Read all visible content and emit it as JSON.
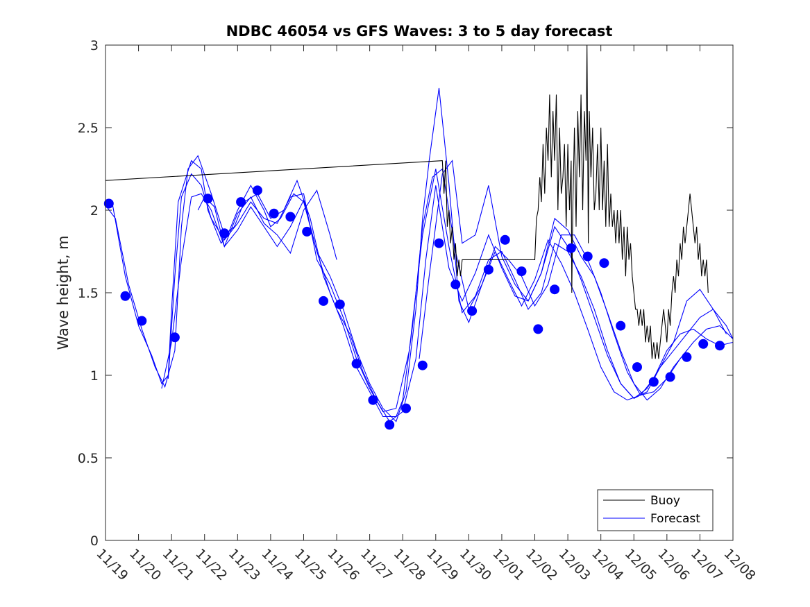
{
  "chart_data": {
    "type": "line",
    "title": "NDBC 46054 vs GFS Waves: 3 to 5 day forecast",
    "xlabel": "",
    "ylabel": "Wave height, m",
    "xlim": [
      0,
      19
    ],
    "ylim": [
      0,
      3
    ],
    "y_ticks": [
      0,
      0.5,
      1,
      1.5,
      2,
      2.5,
      3
    ],
    "y_tick_labels": [
      "0",
      "0.5",
      "1",
      "1.5",
      "2",
      "2.5",
      "3"
    ],
    "x_ticks": [
      0,
      1,
      2,
      3,
      4,
      5,
      6,
      7,
      8,
      9,
      10,
      11,
      12,
      13,
      14,
      15,
      16,
      17,
      18,
      19
    ],
    "x_tick_labels": [
      "11/19",
      "11/20",
      "11/21",
      "11/22",
      "11/23",
      "11/24",
      "11/25",
      "11/26",
      "11/27",
      "11/28",
      "11/29",
      "11/30",
      "12/01",
      "12/02",
      "12/03",
      "12/04",
      "12/05",
      "12/06",
      "12/07",
      "12/08"
    ],
    "legend": {
      "location": "bottom-right",
      "entries": [
        "Buoy",
        "Forecast"
      ]
    },
    "colors": {
      "buoy": "#000000",
      "forecast": "#0000ff",
      "axis": "#262626"
    },
    "series": [
      {
        "name": "Buoy",
        "style": "line",
        "x": [
          0,
          10.2,
          10.25,
          10.3,
          10.35,
          10.4,
          10.45,
          10.5,
          10.55,
          10.6,
          10.65,
          10.7,
          10.75,
          10.8,
          10.85,
          10.9,
          10.95,
          11.0,
          11.5,
          12.0,
          12.5,
          13.0,
          13.05,
          13.1,
          13.15,
          13.2,
          13.25,
          13.3,
          13.35,
          13.4,
          13.45,
          13.5,
          13.55,
          13.6,
          13.65,
          13.7,
          13.75,
          13.8,
          13.85,
          13.9,
          13.95,
          14.0,
          14.05,
          14.1,
          14.12,
          14.15,
          14.2,
          14.25,
          14.3,
          14.35,
          14.4,
          14.45,
          14.5,
          14.55,
          14.58,
          14.6,
          14.62,
          14.65,
          14.7,
          14.75,
          14.8,
          14.85,
          14.9,
          14.95,
          15.0,
          15.05,
          15.1,
          15.15,
          15.2,
          15.25,
          15.3,
          15.35,
          15.4,
          15.45,
          15.5,
          15.55,
          15.6,
          15.65,
          15.7,
          15.75,
          15.8,
          15.85,
          15.9,
          15.95,
          16.0,
          16.05,
          16.1,
          16.15,
          16.2,
          16.25,
          16.3,
          16.35,
          16.4,
          16.45,
          16.5,
          16.55,
          16.6,
          16.65,
          16.7,
          16.75,
          16.8,
          16.85,
          16.9,
          16.95,
          17.0,
          17.05,
          17.1,
          17.15,
          17.2,
          17.25,
          17.3,
          17.35,
          17.4,
          17.45,
          17.5,
          17.55,
          17.6,
          17.65,
          17.7,
          17.75,
          17.8,
          17.85,
          17.9,
          17.95,
          18.0,
          18.05,
          18.1,
          18.15,
          18.2,
          18.25
        ],
        "y": [
          2.18,
          2.3,
          2.1,
          2.3,
          1.9,
          2.0,
          1.8,
          1.9,
          1.7,
          1.8,
          1.6,
          1.7,
          1.6,
          1.7,
          1.7,
          1.7,
          1.7,
          1.7,
          1.7,
          1.7,
          1.7,
          1.7,
          1.95,
          2.0,
          2.2,
          2.05,
          2.4,
          2.1,
          2.5,
          2.3,
          2.7,
          2.2,
          2.6,
          2.3,
          2.7,
          2.0,
          2.5,
          2.1,
          2.2,
          2.4,
          1.9,
          2.4,
          2.0,
          2.3,
          1.5,
          2.0,
          2.5,
          1.9,
          2.6,
          2.2,
          2.7,
          2.0,
          2.6,
          2.3,
          3.0,
          2.4,
          1.8,
          2.6,
          2.2,
          2.5,
          2.0,
          2.1,
          2.4,
          2.0,
          2.5,
          2.0,
          2.3,
          1.9,
          2.4,
          1.9,
          2.1,
          1.9,
          2.0,
          1.8,
          2.0,
          1.8,
          2.0,
          1.7,
          1.9,
          1.6,
          1.9,
          1.7,
          1.8,
          1.6,
          1.5,
          1.4,
          1.4,
          1.3,
          1.4,
          1.3,
          1.4,
          1.2,
          1.3,
          1.2,
          1.3,
          1.1,
          1.2,
          1.1,
          1.2,
          1.1,
          1.2,
          1.3,
          1.4,
          1.3,
          1.2,
          1.4,
          1.3,
          1.5,
          1.6,
          1.5,
          1.7,
          1.6,
          1.8,
          1.7,
          1.9,
          1.8,
          1.9,
          2.0,
          2.1,
          2.0,
          1.9,
          1.8,
          1.9,
          1.7,
          1.8,
          1.6,
          1.7,
          1.6,
          1.7,
          1.5
        ]
      },
      {
        "name": "Forecast",
        "style": "markers",
        "x": [
          0.1,
          0.6,
          1.1,
          2.1,
          3.1,
          3.6,
          4.1,
          4.6,
          5.1,
          5.6,
          6.1,
          6.6,
          7.1,
          7.6,
          8.1,
          8.6,
          9.1,
          9.6,
          10.1,
          10.6,
          11.1,
          11.6,
          12.1,
          12.6,
          13.1,
          13.6,
          14.1,
          14.6,
          15.1,
          15.6,
          16.1,
          16.6,
          17.1,
          17.6,
          18.1,
          18.6
        ],
        "y": [
          2.04,
          1.48,
          1.33,
          1.23,
          2.07,
          1.86,
          2.05,
          2.12,
          1.98,
          1.96,
          1.87,
          1.45,
          1.43,
          1.07,
          0.85,
          0.7,
          0.8,
          1.06,
          1.8,
          1.55,
          1.39,
          1.64,
          1.82,
          1.63,
          1.28,
          1.52,
          1.77,
          1.72,
          1.68,
          1.3,
          1.05,
          0.96,
          0.99,
          1.11,
          1.19,
          1.18
        ]
      },
      {
        "name": "Forecast",
        "style": "line",
        "x": [
          0.0,
          0.2,
          0.6,
          1.0,
          1.4,
          1.7,
          1.9,
          2.0,
          2.2,
          2.6,
          2.9,
          3.1,
          3.5,
          3.7,
          4.0,
          4.4,
          4.8,
          5.0,
          5.3,
          5.7,
          6.0,
          6.4,
          6.8,
          7.2,
          7.6,
          8.0,
          8.4,
          8.8,
          9.0,
          9.3,
          9.6,
          9.9,
          10.2,
          10.6,
          11.0,
          11.4,
          11.8,
          12.2,
          12.6,
          13.0,
          13.4,
          13.8,
          14.2,
          14.6,
          15.0,
          15.4,
          15.8,
          16.2,
          16.6,
          17.0,
          17.4,
          17.8,
          18.2,
          18.6,
          19.0
        ],
        "y": [
          2.05,
          2.05,
          1.6,
          1.3,
          1.12,
          0.95,
          1.0,
          1.4,
          2.05,
          2.3,
          2.25,
          2.0,
          1.8,
          1.85,
          2.0,
          2.15,
          2.0,
          1.9,
          1.95,
          2.1,
          2.05,
          1.75,
          1.5,
          1.3,
          1.05,
          0.9,
          0.75,
          0.75,
          0.85,
          1.3,
          1.9,
          2.2,
          2.25,
          1.75,
          1.4,
          1.55,
          1.78,
          1.7,
          1.6,
          1.42,
          1.55,
          1.85,
          1.85,
          1.7,
          1.5,
          1.25,
          1.02,
          0.88,
          0.9,
          0.98,
          1.1,
          1.2,
          1.28,
          1.3,
          1.22
        ]
      },
      {
        "name": "Forecast",
        "style": "line",
        "x": [
          0.0,
          0.3,
          0.7,
          1.1,
          1.5,
          1.8,
          2.1,
          2.3,
          2.5,
          2.8,
          3.2,
          3.6,
          3.9,
          4.2,
          4.6,
          5.0,
          5.4,
          5.8,
          6.2,
          6.6,
          7.0,
          7.4,
          7.8,
          8.2,
          8.6,
          9.0,
          9.4,
          9.7,
          10.0,
          10.4,
          10.8,
          11.2,
          11.6,
          12.0,
          12.4,
          12.8,
          13.2,
          13.6,
          14.0,
          14.4,
          14.8,
          15.2,
          15.6,
          16.0,
          16.4,
          16.8,
          17.2,
          17.6,
          18.0,
          18.4,
          18.8,
          19.0
        ],
        "y": [
          2.03,
          1.95,
          1.55,
          1.28,
          1.05,
          0.93,
          1.15,
          1.9,
          2.25,
          2.33,
          2.1,
          1.85,
          1.9,
          2.05,
          2.1,
          1.95,
          2.0,
          2.18,
          1.95,
          1.6,
          1.4,
          1.25,
          1.02,
          0.85,
          0.72,
          0.78,
          1.1,
          1.7,
          2.15,
          1.65,
          1.45,
          1.62,
          1.85,
          1.65,
          1.48,
          1.45,
          1.62,
          1.9,
          1.78,
          1.58,
          1.35,
          1.12,
          0.95,
          0.86,
          0.92,
          1.05,
          1.15,
          1.25,
          1.35,
          1.4,
          1.3,
          1.22
        ]
      },
      {
        "name": "Forecast",
        "style": "line",
        "x": [
          1.9,
          2.1,
          2.3,
          2.6,
          2.9,
          3.2,
          3.6,
          4.0,
          4.4,
          4.8,
          5.2,
          5.6,
          6.0,
          6.4,
          6.8,
          7.2,
          7.6,
          8.0,
          8.4,
          8.8,
          9.2,
          9.6,
          10.0,
          10.4,
          10.8,
          11.2,
          11.6,
          12.0,
          12.4,
          12.8,
          13.2,
          13.6,
          14.0,
          14.4,
          14.8,
          15.2,
          15.6,
          16.0,
          16.4,
          16.8,
          17.2,
          17.6,
          18.0,
          18.4,
          18.8
        ],
        "y": [
          0.98,
          1.6,
          2.08,
          2.22,
          2.15,
          1.95,
          1.82,
          1.92,
          2.05,
          1.95,
          1.92,
          2.08,
          2.1,
          1.7,
          1.55,
          1.35,
          1.1,
          0.92,
          0.78,
          0.8,
          1.15,
          1.85,
          2.25,
          1.78,
          1.38,
          1.48,
          1.7,
          1.75,
          1.58,
          1.4,
          1.5,
          1.8,
          1.75,
          1.6,
          1.4,
          1.15,
          0.95,
          0.86,
          0.9,
          1.05,
          1.2,
          1.45,
          1.52,
          1.4,
          1.25
        ]
      },
      {
        "name": "Forecast",
        "style": "line",
        "x": [
          1.7,
          2.0,
          2.3,
          2.6,
          2.9,
          3.2,
          3.6,
          4.0,
          4.4,
          4.8,
          5.2,
          5.6,
          6.0,
          6.4,
          6.8,
          7.2,
          7.6,
          8.0,
          8.4,
          8.8,
          9.1,
          9.4,
          9.6,
          9.8,
          10.1,
          10.4,
          10.7,
          11.0,
          11.4,
          11.8,
          12.2,
          12.6,
          13.0,
          13.4,
          13.8,
          14.2,
          14.6,
          15.0,
          15.4,
          15.8,
          16.2,
          16.6,
          17.0,
          17.4,
          17.8,
          18.2,
          18.6,
          19.0
        ],
        "y": [
          0.92,
          1.2,
          1.7,
          2.08,
          2.1,
          2.0,
          1.78,
          1.88,
          2.02,
          1.9,
          1.78,
          1.9,
          2.06,
          1.75,
          1.6,
          1.4,
          1.15,
          0.95,
          0.8,
          0.72,
          0.9,
          1.4,
          1.95,
          2.3,
          2.74,
          2.16,
          1.45,
          1.32,
          1.55,
          1.75,
          1.58,
          1.42,
          1.58,
          1.82,
          1.68,
          1.5,
          1.28,
          1.05,
          0.9,
          0.85,
          0.88,
          0.98,
          1.15,
          1.25,
          1.28,
          1.22,
          1.18,
          1.2
        ]
      },
      {
        "name": "Forecast",
        "style": "line",
        "x": [
          2.8,
          3.0,
          3.3,
          3.6,
          4.0,
          4.4,
          4.8,
          5.2,
          5.6,
          6.0,
          6.4,
          6.8,
          7.0
        ],
        "y": [
          2.0,
          2.08,
          2.02,
          1.78,
          1.98,
          2.08,
          1.92,
          1.85,
          1.74,
          2.0,
          2.12,
          1.85,
          1.7
        ]
      },
      {
        "name": "Forecast",
        "style": "line",
        "x": [
          9.5,
          9.8,
          10.2,
          10.5,
          10.8,
          11.2,
          11.6,
          12.0,
          12.4,
          12.8,
          13.2,
          13.6,
          14.0,
          14.4,
          14.8,
          15.2,
          15.6,
          16.0,
          16.4,
          16.8,
          17.2,
          17.6
        ],
        "y": [
          1.1,
          1.6,
          2.22,
          2.3,
          1.8,
          1.85,
          2.15,
          1.72,
          1.55,
          1.45,
          1.62,
          1.95,
          1.88,
          1.72,
          1.6,
          1.38,
          1.15,
          0.95,
          0.85,
          0.92,
          1.05,
          1.15
        ]
      }
    ]
  }
}
